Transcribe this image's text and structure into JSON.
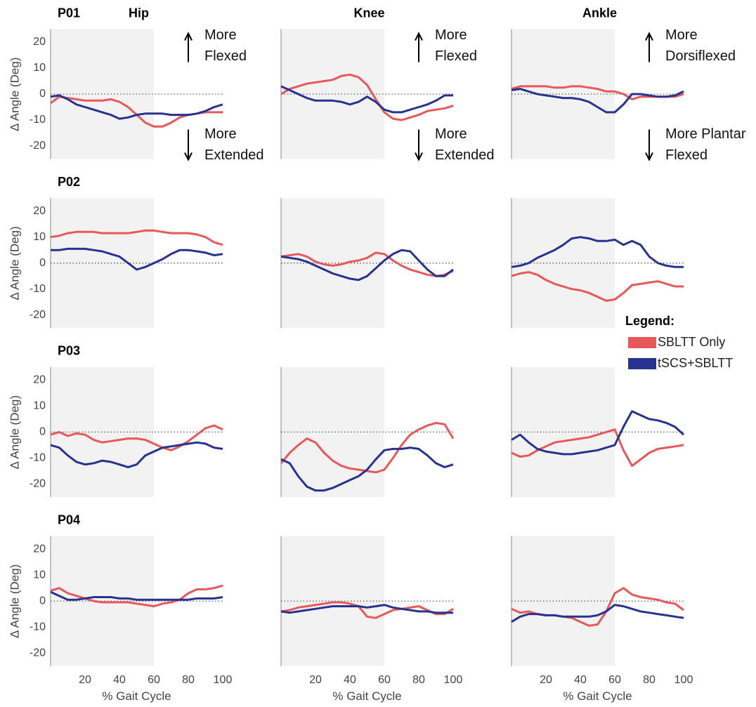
{
  "chart_data": [
    {
      "type": "line",
      "title": "Hip",
      "panel_label": "P01",
      "ylabel": "∆ Angle (Deg)",
      "xlim": [
        0,
        100
      ],
      "ylim": [
        -25,
        25
      ],
      "yticks": [
        -20,
        -10,
        0,
        10,
        20
      ],
      "reference_line": 0,
      "shaded_range": [
        0,
        60
      ],
      "annotations": {
        "up": [
          "More",
          "Flexed"
        ],
        "down": [
          "More",
          "Extended"
        ]
      },
      "x": [
        0,
        5,
        10,
        15,
        20,
        25,
        30,
        35,
        40,
        45,
        50,
        55,
        60,
        65,
        70,
        75,
        80,
        85,
        90,
        95,
        100
      ],
      "series": [
        {
          "color": "#e8585b",
          "values": [
            -3.5,
            -1,
            -1.5,
            -2,
            -2.5,
            -2.5,
            -2.5,
            -2,
            -3,
            -5,
            -8,
            -11,
            -12.5,
            -12.5,
            -11,
            -9,
            -8,
            -7.5,
            -7,
            -7,
            -7
          ]
        },
        {
          "color": "#27338f",
          "values": [
            -1,
            -0.5,
            -2,
            -4,
            -5,
            -6,
            -7,
            -8,
            -9.5,
            -9,
            -8,
            -7.5,
            -7.5,
            -7.5,
            -8,
            -8,
            -8,
            -7.5,
            -6.5,
            -5,
            -4
          ]
        }
      ]
    },
    {
      "type": "line",
      "title": "Knee",
      "xlim": [
        0,
        100
      ],
      "ylim": [
        -25,
        25
      ],
      "reference_line": 0,
      "shaded_range": [
        0,
        60
      ],
      "annotations": {
        "up": [
          "More",
          "Flexed"
        ],
        "down": [
          "More",
          "Extended"
        ]
      },
      "x": [
        0,
        5,
        10,
        15,
        20,
        25,
        30,
        35,
        40,
        45,
        50,
        55,
        60,
        65,
        70,
        75,
        80,
        85,
        90,
        95,
        100
      ],
      "series": [
        {
          "color": "#e8585b",
          "values": [
            0,
            2,
            3,
            4,
            4.5,
            5,
            5.5,
            7,
            7.5,
            6.5,
            3.5,
            -2,
            -7,
            -9.5,
            -10,
            -9,
            -8,
            -6.5,
            -6,
            -5.5,
            -4.5
          ]
        },
        {
          "color": "#27338f",
          "values": [
            3,
            1.5,
            0,
            -1.5,
            -2.5,
            -2.5,
            -2.5,
            -3,
            -4,
            -3,
            -1,
            -3,
            -6,
            -7,
            -7,
            -6,
            -5,
            -4,
            -2.5,
            -0.5,
            -0.5
          ]
        }
      ]
    },
    {
      "type": "line",
      "title": "Ankle",
      "xlim": [
        0,
        100
      ],
      "ylim": [
        -25,
        25
      ],
      "reference_line": 0,
      "shaded_range": [
        0,
        60
      ],
      "annotations": {
        "up": [
          "More",
          "Dorsiflexed"
        ],
        "down": [
          "More Plantar",
          "Flexed"
        ]
      },
      "x": [
        0,
        5,
        10,
        15,
        20,
        25,
        30,
        35,
        40,
        45,
        50,
        55,
        60,
        65,
        70,
        75,
        80,
        85,
        90,
        95,
        100
      ],
      "series": [
        {
          "color": "#e8585b",
          "values": [
            2,
            3,
            3,
            3,
            3,
            2.5,
            2.5,
            3,
            3,
            2.5,
            2,
            1,
            1,
            0,
            -2,
            -1,
            -1,
            -1,
            -1,
            -1,
            0
          ]
        },
        {
          "color": "#27338f",
          "values": [
            1.5,
            2,
            1,
            0,
            -0.5,
            -1,
            -1.5,
            -1.5,
            -2,
            -3,
            -5,
            -7,
            -7,
            -4,
            0,
            0,
            -0.5,
            -1,
            -1,
            -0.5,
            1
          ]
        }
      ]
    },
    {
      "type": "line",
      "panel_label": "P02",
      "ylabel": "∆ Angle (Deg)",
      "xlim": [
        0,
        100
      ],
      "ylim": [
        -25,
        25
      ],
      "yticks": [
        -20,
        -10,
        0,
        10,
        20
      ],
      "reference_line": 0,
      "shaded_range": [
        0,
        60
      ],
      "x": [
        0,
        5,
        10,
        15,
        20,
        25,
        30,
        35,
        40,
        45,
        50,
        55,
        60,
        65,
        70,
        75,
        80,
        85,
        90,
        95,
        100
      ],
      "series": [
        {
          "color": "#e8585b",
          "values": [
            10,
            10.5,
            11.5,
            12,
            12,
            12,
            11.5,
            11.5,
            11.5,
            11.5,
            12,
            12.5,
            12.5,
            12,
            11.5,
            11.5,
            11.5,
            11,
            10,
            8,
            7
          ]
        },
        {
          "color": "#27338f",
          "values": [
            5,
            5,
            5.5,
            5.5,
            5.5,
            5,
            4.5,
            3.5,
            2.5,
            0,
            -2.5,
            -1.5,
            0,
            1.5,
            3.5,
            5,
            5,
            4.5,
            4,
            3,
            3.5
          ]
        }
      ]
    },
    {
      "type": "line",
      "xlim": [
        0,
        100
      ],
      "ylim": [
        -25,
        25
      ],
      "reference_line": 0,
      "shaded_range": [
        0,
        60
      ],
      "x": [
        0,
        5,
        10,
        15,
        20,
        25,
        30,
        35,
        40,
        45,
        50,
        55,
        60,
        65,
        70,
        75,
        80,
        85,
        90,
        95,
        100
      ],
      "series": [
        {
          "color": "#e8585b",
          "values": [
            2.5,
            3,
            3.5,
            2.5,
            0.5,
            -0.5,
            -1,
            -0.5,
            0.5,
            1,
            2,
            4,
            3.5,
            1,
            -1,
            -2.5,
            -3.5,
            -4.5,
            -5,
            -4.5,
            -3
          ]
        },
        {
          "color": "#27338f",
          "values": [
            2.5,
            2,
            1.5,
            0.5,
            -1,
            -2.5,
            -4,
            -5,
            -6,
            -6.5,
            -5,
            -2,
            1,
            3.5,
            5,
            4.5,
            1,
            -2.5,
            -5,
            -5,
            -2.5
          ]
        }
      ]
    },
    {
      "type": "line",
      "xlim": [
        0,
        100
      ],
      "ylim": [
        -25,
        25
      ],
      "reference_line": 0,
      "shaded_range": [
        0,
        60
      ],
      "x": [
        0,
        5,
        10,
        15,
        20,
        25,
        30,
        35,
        40,
        45,
        50,
        55,
        60,
        65,
        70,
        75,
        80,
        85,
        90,
        95,
        100
      ],
      "series": [
        {
          "color": "#e8585b",
          "values": [
            -5,
            -4,
            -3.5,
            -4.5,
            -6.5,
            -8,
            -9,
            -10,
            -10.5,
            -11.5,
            -13,
            -14.5,
            -14,
            -11.5,
            -8.5,
            -8,
            -7.5,
            -7,
            -8,
            -9,
            -9
          ]
        },
        {
          "color": "#27338f",
          "values": [
            -1.5,
            -1,
            0,
            2,
            3.5,
            5,
            7,
            9.5,
            10,
            9.5,
            8.5,
            8.5,
            9,
            7,
            8.5,
            7,
            2.5,
            0,
            -1,
            -1.5,
            -1.5
          ]
        }
      ]
    },
    {
      "type": "line",
      "panel_label": "P03",
      "ylabel": "∆ Angle (Deg)",
      "xlim": [
        0,
        100
      ],
      "ylim": [
        -25,
        25
      ],
      "yticks": [
        -20,
        -10,
        0,
        10,
        20
      ],
      "reference_line": 0,
      "shaded_range": [
        0,
        60
      ],
      "x": [
        0,
        5,
        10,
        15,
        20,
        25,
        30,
        35,
        40,
        45,
        50,
        55,
        60,
        65,
        70,
        75,
        80,
        85,
        90,
        95,
        100
      ],
      "series": [
        {
          "color": "#e8585b",
          "values": [
            -1,
            0,
            -1.5,
            -0.5,
            -1,
            -3,
            -4,
            -3.5,
            -3,
            -2.5,
            -2.5,
            -3,
            -4.5,
            -6,
            -7,
            -5.5,
            -3.5,
            -1,
            1.5,
            2.5,
            1
          ]
        },
        {
          "color": "#27338f",
          "values": [
            -5,
            -6,
            -9,
            -11.5,
            -12.5,
            -12,
            -11,
            -11.5,
            -12.5,
            -13.5,
            -12.5,
            -9,
            -7.5,
            -6,
            -5.5,
            -5,
            -4.5,
            -4,
            -4.5,
            -6,
            -6.5
          ]
        }
      ]
    },
    {
      "type": "line",
      "xlim": [
        0,
        100
      ],
      "ylim": [
        -25,
        25
      ],
      "reference_line": 0,
      "shaded_range": [
        0,
        60
      ],
      "x": [
        0,
        5,
        10,
        15,
        20,
        25,
        30,
        35,
        40,
        45,
        50,
        55,
        60,
        65,
        70,
        75,
        80,
        85,
        90,
        95,
        100
      ],
      "series": [
        {
          "color": "#e8585b",
          "values": [
            -12,
            -8,
            -5,
            -2.5,
            -4,
            -8,
            -11,
            -13,
            -14,
            -14.5,
            -15,
            -15.5,
            -14.5,
            -10,
            -5,
            -1,
            1,
            2.5,
            3.5,
            3,
            -2.5
          ]
        },
        {
          "color": "#27338f",
          "values": [
            -10.5,
            -12,
            -17,
            -21,
            -22.5,
            -22.5,
            -21.5,
            -20,
            -18.5,
            -17,
            -14.5,
            -10.5,
            -7,
            -6.5,
            -6.5,
            -6,
            -6.5,
            -9,
            -12,
            -13.5,
            -12.5
          ]
        }
      ]
    },
    {
      "type": "line",
      "xlim": [
        0,
        100
      ],
      "ylim": [
        -25,
        25
      ],
      "reference_line": 0,
      "shaded_range": [
        0,
        60
      ],
      "x": [
        0,
        5,
        10,
        15,
        20,
        25,
        30,
        35,
        40,
        45,
        50,
        55,
        60,
        65,
        70,
        75,
        80,
        85,
        90,
        95,
        100
      ],
      "series": [
        {
          "color": "#e8585b",
          "values": [
            -8,
            -9.5,
            -9,
            -7,
            -5.5,
            -4,
            -3.5,
            -3,
            -2.5,
            -2,
            -1,
            0,
            1,
            -7,
            -13,
            -10.5,
            -8,
            -6.5,
            -6,
            -5.5,
            -5
          ]
        },
        {
          "color": "#27338f",
          "values": [
            -3,
            -1,
            -4,
            -6.5,
            -7.5,
            -8,
            -8.5,
            -8.5,
            -8,
            -7.5,
            -7,
            -6,
            -5,
            2,
            8,
            6.5,
            5,
            4.5,
            3.5,
            2,
            -1
          ]
        }
      ]
    },
    {
      "type": "line",
      "panel_label": "P04",
      "ylabel": "∆ Angle (Deg)",
      "xlabel": "% Gait Cycle",
      "xlim": [
        0,
        100
      ],
      "ylim": [
        -25,
        25
      ],
      "yticks": [
        -20,
        -10,
        0,
        10,
        20
      ],
      "xticks": [
        20,
        40,
        60,
        80,
        100
      ],
      "reference_line": 0,
      "shaded_range": [
        0,
        60
      ],
      "x": [
        0,
        5,
        10,
        15,
        20,
        25,
        30,
        35,
        40,
        45,
        50,
        55,
        60,
        65,
        70,
        75,
        80,
        85,
        90,
        95,
        100
      ],
      "series": [
        {
          "color": "#e8585b",
          "values": [
            4,
            5,
            3,
            2,
            1,
            0,
            -0.5,
            -0.5,
            -0.5,
            -0.5,
            -1,
            -1.5,
            -2,
            -1,
            -0.5,
            0.5,
            3,
            4.5,
            4.5,
            5,
            6
          ]
        },
        {
          "color": "#27338f",
          "values": [
            3.5,
            2,
            0.5,
            0.5,
            1,
            1.5,
            1.5,
            1.5,
            1,
            1,
            0.5,
            0.5,
            0.5,
            0.5,
            0.5,
            0.5,
            0.5,
            1,
            1,
            1,
            1.5
          ]
        }
      ]
    },
    {
      "type": "line",
      "xlabel": "% Gait Cycle",
      "xlim": [
        0,
        100
      ],
      "ylim": [
        -25,
        25
      ],
      "xticks": [
        20,
        40,
        60,
        80,
        100
      ],
      "reference_line": 0,
      "shaded_range": [
        0,
        60
      ],
      "x": [
        0,
        5,
        10,
        15,
        20,
        25,
        30,
        35,
        40,
        45,
        50,
        55,
        60,
        65,
        70,
        75,
        80,
        85,
        90,
        95,
        100
      ],
      "series": [
        {
          "color": "#e8585b",
          "values": [
            -4,
            -3.5,
            -2.5,
            -2,
            -1.5,
            -1,
            -0.5,
            -0.5,
            -1,
            -2,
            -6,
            -6.5,
            -5,
            -3.5,
            -3,
            -2.5,
            -2,
            -3.5,
            -5,
            -5,
            -3
          ]
        },
        {
          "color": "#27338f",
          "values": [
            -4,
            -4.5,
            -4,
            -3.5,
            -3,
            -2.5,
            -2,
            -2,
            -2,
            -2,
            -2.5,
            -2,
            -1.5,
            -2.5,
            -3,
            -3.5,
            -4,
            -4,
            -4.5,
            -4.5,
            -4.5
          ]
        }
      ]
    },
    {
      "type": "line",
      "xlabel": "% Gait Cycle",
      "xlim": [
        0,
        100
      ],
      "ylim": [
        -25,
        25
      ],
      "xticks": [
        20,
        40,
        60,
        80,
        100
      ],
      "reference_line": 0,
      "shaded_range": [
        0,
        60
      ],
      "x": [
        0,
        5,
        10,
        15,
        20,
        25,
        30,
        35,
        40,
        45,
        50,
        55,
        60,
        65,
        70,
        75,
        80,
        85,
        90,
        95,
        100
      ],
      "series": [
        {
          "color": "#e8585b",
          "values": [
            -3,
            -4.5,
            -4,
            -5,
            -5.5,
            -5.5,
            -6,
            -6.5,
            -8,
            -9.5,
            -9,
            -4,
            3,
            5,
            2.5,
            1.5,
            1,
            0.5,
            -0.5,
            -1,
            -3.5
          ]
        },
        {
          "color": "#27338f",
          "values": [
            -8,
            -6,
            -5,
            -5,
            -5.5,
            -5.5,
            -6,
            -6,
            -6,
            -6,
            -5.5,
            -4,
            -1.5,
            -2,
            -3,
            -4,
            -4.5,
            -5,
            -5.5,
            -6,
            -6.5
          ]
        }
      ]
    }
  ],
  "legend": {
    "title": "Legend:",
    "items": [
      {
        "name": "SBLTT Only",
        "color": "#e8585b"
      },
      {
        "name": "tSCS+SBLTT",
        "color": "#27338f"
      }
    ]
  }
}
